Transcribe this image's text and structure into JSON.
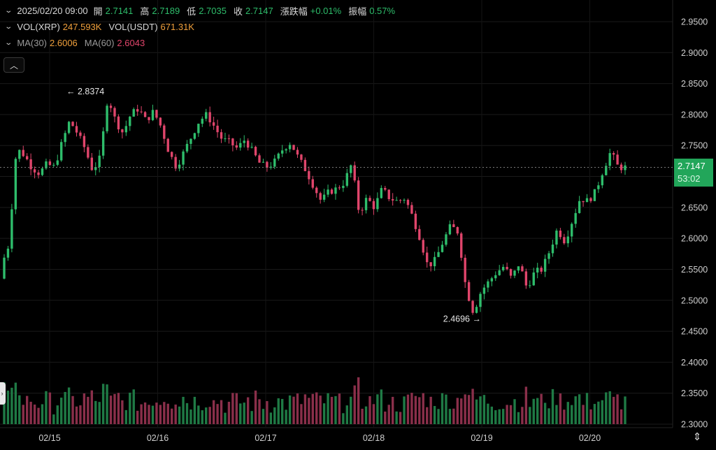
{
  "ohlc_bar": {
    "datetime": "2025/02/20 09:00",
    "open_label": "開",
    "open": "2.7141",
    "high_label": "高",
    "high": "2.7189",
    "low_label": "低",
    "low": "2.7035",
    "close_label": "收",
    "close": "2.7147",
    "change_label": "漲跌幅",
    "change": "+0.01%",
    "amplitude_label": "振幅",
    "amplitude": "0.57%"
  },
  "volume_bar": {
    "vol_xrp_label": "VOL(XRP)",
    "vol_xrp": "247.593K",
    "vol_usdt_label": "VOL(USDT)",
    "vol_usdt": "671.31K"
  },
  "ma_bar": {
    "ma30_label": "MA(30)",
    "ma30": "2.6006",
    "ma60_label": "MA(60)",
    "ma60": "2.6043"
  },
  "price_tag": {
    "price": "2.7147",
    "countdown": "53:02"
  },
  "annotations": {
    "high": "2.8374",
    "low": "2.4696"
  },
  "icons": {
    "collapse": "chevron-up-icon",
    "handle": "chevron-right-icon",
    "scale": "vertical-resize-icon"
  },
  "colors": {
    "up": "#2ebd6b",
    "down": "#e0456b",
    "vol_up": "#1f7a45",
    "vol_down": "#8a2f4a",
    "price_tag": "#22a65a",
    "ma30": "#f0a03c",
    "ma60": "#e0456b"
  },
  "chart_data": {
    "type": "candlestick",
    "y_axis_ticks": [
      "2.9500",
      "2.9000",
      "2.8500",
      "2.8000",
      "2.7500",
      "2.7000",
      "2.6500",
      "2.6000",
      "2.5500",
      "2.5000",
      "2.4500",
      "2.4000",
      "2.3500",
      "2.3000"
    ],
    "ylim": [
      2.3,
      2.95
    ],
    "x_axis_labels": [
      "02/15",
      "02/16",
      "02/17",
      "02/18",
      "02/19",
      "02/20"
    ],
    "grid": true,
    "candles_interval": "1h",
    "close_path": [
      2.555,
      2.59,
      2.745,
      2.735,
      2.715,
      2.705,
      2.72,
      2.715,
      2.755,
      2.79,
      2.77,
      2.745,
      2.71,
      2.73,
      2.83,
      2.79,
      2.77,
      2.8,
      2.81,
      2.79,
      2.805,
      2.78,
      2.74,
      2.715,
      2.74,
      2.765,
      2.79,
      2.8,
      2.78,
      2.76,
      2.755,
      2.745,
      2.76,
      2.74,
      2.72,
      2.715,
      2.725,
      2.745,
      2.755,
      2.73,
      2.71,
      2.685,
      2.66,
      2.675,
      2.68,
      2.69,
      2.72,
      2.64,
      2.665,
      2.65,
      2.68,
      2.665,
      2.66,
      2.665,
      2.635,
      2.6,
      2.555,
      2.565,
      2.595,
      2.62,
      2.61,
      2.52,
      2.48,
      2.515,
      2.53,
      2.545,
      2.555,
      2.535,
      2.56,
      2.52,
      2.545,
      2.55,
      2.58,
      2.615,
      2.595,
      2.63,
      2.665,
      2.66,
      2.675,
      2.71,
      2.74,
      2.7147
    ]
  }
}
